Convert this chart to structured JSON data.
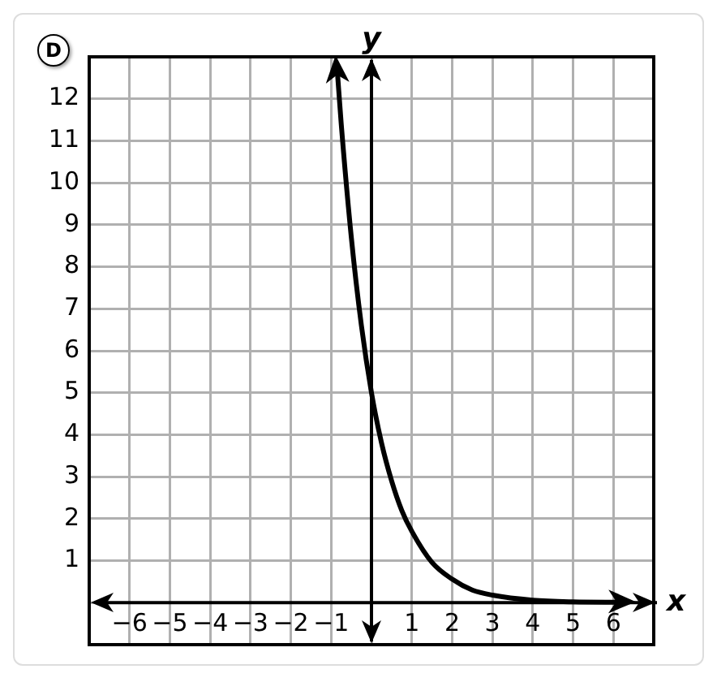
{
  "chart_data": {
    "type": "line",
    "xlabel": "x",
    "ylabel": "y",
    "annotations": [
      "D"
    ],
    "xlim": [
      -7,
      7
    ],
    "ylim": [
      -1,
      13
    ],
    "xticks": [
      {
        "value": -7,
        "label": null
      },
      {
        "value": -6,
        "label": "−6"
      },
      {
        "value": -5,
        "label": "−5"
      },
      {
        "value": -4,
        "label": "−4"
      },
      {
        "value": -3,
        "label": "−3"
      },
      {
        "value": -2,
        "label": "−2"
      },
      {
        "value": -1,
        "label": "−1"
      },
      {
        "value": 0,
        "label": null
      },
      1,
      2,
      3,
      4,
      5,
      6,
      {
        "value": 7,
        "label": null
      }
    ],
    "yticks": [
      {
        "value": -1,
        "label": null
      },
      {
        "value": 0,
        "label": null
      },
      1,
      2,
      3,
      4,
      5,
      6,
      7,
      8,
      9,
      10,
      11,
      12,
      {
        "value": 13,
        "label": null
      }
    ],
    "grid": true,
    "marker": "none",
    "line_style": "solid",
    "legend": false,
    "series": [
      {
        "color": "#000000",
        "x": [
          -0.85,
          -0.75,
          -0.5,
          -0.25,
          0,
          0.25,
          0.5,
          0.75,
          1,
          1.5,
          2,
          2.5,
          3,
          4,
          5,
          6.2
        ],
        "values": [
          12.7,
          11.4,
          8.7,
          6.6,
          5,
          3.8,
          2.9,
          2.2,
          1.7,
          0.96,
          0.56,
          0.3,
          0.18,
          0.06,
          0.02,
          0.01
        ]
      }
    ]
  }
}
